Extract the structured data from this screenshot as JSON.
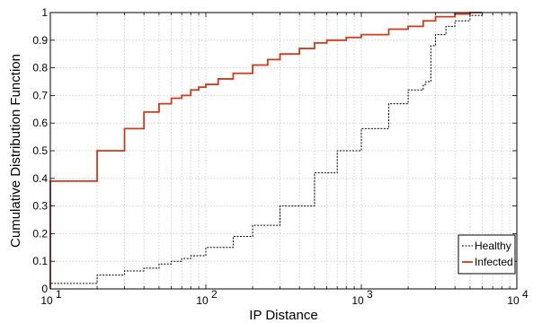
{
  "chart_data": {
    "type": "line",
    "title": "",
    "xlabel": "IP Distance",
    "ylabel": "Cumulative Distribution Function",
    "xscale": "log",
    "xlim": [
      10,
      10000
    ],
    "ylim": [
      0,
      1
    ],
    "grid": true,
    "legend_position": "bottom-right",
    "x_ticks": [
      {
        "value": 10,
        "base": "10",
        "exp": "1"
      },
      {
        "value": 100,
        "base": "10",
        "exp": "2"
      },
      {
        "value": 1000,
        "base": "10",
        "exp": "3"
      },
      {
        "value": 10000,
        "base": "10",
        "exp": "4"
      }
    ],
    "y_ticks": [
      "0",
      "0.1",
      "0.2",
      "0.3",
      "0.4",
      "0.5",
      "0.6",
      "0.7",
      "0.8",
      "0.9",
      "1"
    ],
    "series": [
      {
        "name": "Healthy",
        "color": "#000000",
        "style": "dashed",
        "x": [
          10,
          20,
          30,
          40,
          50,
          60,
          70,
          80,
          100,
          150,
          200,
          300,
          500,
          700,
          1000,
          1500,
          2000,
          2500,
          2600,
          2800,
          3000,
          3500,
          4000,
          5000,
          6000
        ],
        "y": [
          0.02,
          0.05,
          0.065,
          0.075,
          0.09,
          0.1,
          0.11,
          0.12,
          0.15,
          0.19,
          0.23,
          0.3,
          0.42,
          0.5,
          0.58,
          0.67,
          0.72,
          0.74,
          0.75,
          0.88,
          0.92,
          0.95,
          0.97,
          0.99,
          1.0
        ]
      },
      {
        "name": "Infected",
        "color": "#d03a1a",
        "style": "solid",
        "x": [
          10,
          20,
          30,
          40,
          50,
          60,
          70,
          80,
          90,
          100,
          120,
          150,
          200,
          250,
          300,
          400,
          500,
          600,
          800,
          1000,
          1500,
          2000,
          2500,
          3000,
          4000,
          5000,
          6000
        ],
        "y": [
          0.39,
          0.5,
          0.58,
          0.64,
          0.67,
          0.69,
          0.7,
          0.72,
          0.73,
          0.74,
          0.76,
          0.78,
          0.81,
          0.83,
          0.85,
          0.87,
          0.89,
          0.9,
          0.91,
          0.92,
          0.94,
          0.95,
          0.97,
          0.985,
          0.995,
          1.0,
          1.0
        ]
      }
    ]
  }
}
